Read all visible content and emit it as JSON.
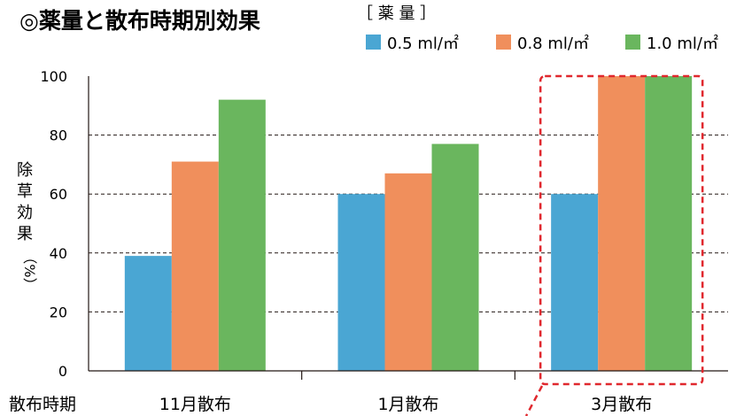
{
  "chart_data": {
    "type": "bar",
    "title": "◎薬量と散布時期別効果",
    "legend_title": "［ 薬 量 ］",
    "legend_placement": "top-right",
    "xlabel": "散布時期",
    "ylabel": "除草効果（%）",
    "ylabel_chars": [
      "除",
      "草",
      "効",
      "果",
      "（%）"
    ],
    "ylim": [
      0,
      100
    ],
    "yticks": [
      "0",
      "20",
      "40",
      "60",
      "80",
      "100"
    ],
    "dashed_gridlines": [
      20,
      40,
      60,
      80
    ],
    "categories": [
      "11月散布",
      "1月散布",
      "3月散布"
    ],
    "series": [
      {
        "name": "0.5 ml/㎡",
        "color": "#4aa6d3",
        "values": [
          39,
          60,
          60
        ]
      },
      {
        "name": "0.8 ml/㎡",
        "color": "#f08f5c",
        "values": [
          71,
          67,
          100
        ]
      },
      {
        "name": "1.0 ml/㎡",
        "color": "#6ab65e",
        "values": [
          92,
          77,
          100
        ]
      }
    ],
    "highlight": {
      "category": "3月散布",
      "color": "#e0282e",
      "style": "dashed-box"
    }
  }
}
